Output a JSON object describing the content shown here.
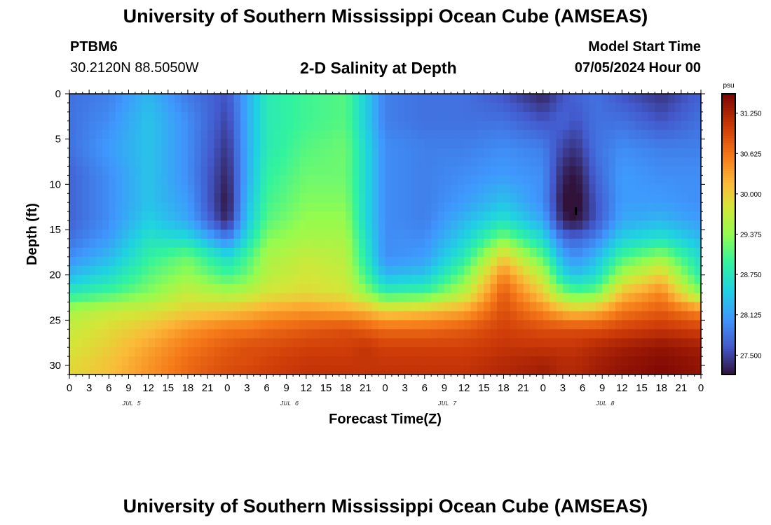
{
  "header": {
    "title": "University of Southern Mississippi Ocean Cube (AMSEAS)",
    "station_name": "PTBM6",
    "station_coords": "30.2120N  88.5050W",
    "chart_title": "2-D Salinity at Depth",
    "model_start_label": "Model Start Time",
    "model_start_value": "07/05/2024 Hour 00"
  },
  "footer": {
    "title": "University of Southern Mississippi Ocean Cube (AMSEAS)"
  },
  "chart_data": {
    "type": "heatmap",
    "title": "2-D Salinity at Depth",
    "xlabel": "Forecast Time(Z)",
    "ylabel": "Depth (ft)",
    "x_tick_labels": [
      "0",
      "3",
      "6",
      "9",
      "12",
      "15",
      "18",
      "21",
      "0",
      "3",
      "6",
      "9",
      "12",
      "15",
      "18",
      "21",
      "0",
      "3",
      "6",
      "9",
      "12",
      "15",
      "18",
      "21",
      "0",
      "3",
      "6",
      "9",
      "12",
      "15",
      "18",
      "21",
      "0"
    ],
    "day_labels": [
      {
        "label": "JUL 5",
        "hour": 9
      },
      {
        "label": "JUL 6",
        "hour": 33
      },
      {
        "label": "JUL 7",
        "hour": 57
      },
      {
        "label": "JUL 8",
        "hour": 81
      }
    ],
    "xlim": [
      0,
      96
    ],
    "ylim": [
      0,
      31
    ],
    "y_ticks": [
      0,
      5,
      10,
      15,
      20,
      25,
      30
    ],
    "y_inverted": true,
    "colorbar": {
      "unit": "psu",
      "ticks": [
        "31.250",
        "30.625",
        "30.000",
        "29.375",
        "28.750",
        "28.125",
        "27.500"
      ],
      "tick_values": [
        31.25,
        30.625,
        30.0,
        29.375,
        28.75,
        28.125,
        27.5
      ],
      "range": [
        27.2,
        31.55
      ],
      "colormap": "turbo"
    },
    "marker": {
      "hour": 77,
      "depth": 13
    },
    "hours": [
      0,
      6,
      12,
      18,
      24,
      27,
      30,
      36,
      42,
      45,
      48,
      54,
      60,
      66,
      72,
      75,
      77,
      80,
      84,
      90,
      96
    ],
    "depths": [
      0,
      3,
      6,
      9,
      12,
      14,
      16,
      18,
      20,
      22,
      24,
      26,
      28,
      30,
      31
    ],
    "salinity": [
      [
        27.8,
        27.9,
        28.3,
        27.85,
        27.6,
        28.2,
        28.8,
        29.0,
        29.1,
        28.5,
        27.9,
        27.8,
        27.8,
        27.6,
        27.3,
        27.6,
        27.7,
        27.8,
        27.6,
        27.4,
        27.7
      ],
      [
        27.8,
        28.0,
        28.4,
        28.0,
        27.5,
        28.2,
        28.8,
        29.0,
        29.1,
        28.5,
        27.9,
        27.8,
        27.8,
        27.8,
        27.6,
        27.7,
        27.6,
        27.8,
        27.8,
        27.6,
        27.8
      ],
      [
        27.8,
        28.1,
        28.4,
        28.0,
        27.4,
        28.2,
        28.8,
        29.1,
        29.2,
        28.6,
        28.0,
        27.9,
        27.9,
        28.0,
        27.9,
        27.5,
        27.4,
        27.8,
        28.0,
        27.9,
        27.9
      ],
      [
        27.7,
        28.0,
        28.4,
        28.0,
        27.3,
        28.2,
        28.9,
        29.2,
        29.2,
        28.6,
        28.0,
        27.9,
        28.0,
        28.1,
        28.0,
        27.3,
        27.2,
        27.7,
        28.1,
        28.0,
        28.0
      ],
      [
        27.7,
        28.0,
        28.4,
        28.1,
        27.2,
        28.3,
        29.0,
        29.3,
        29.3,
        28.6,
        28.0,
        27.9,
        28.1,
        28.4,
        28.0,
        27.2,
        27.1,
        27.6,
        28.1,
        28.1,
        28.0
      ],
      [
        27.7,
        28.0,
        28.5,
        28.2,
        27.3,
        28.4,
        29.1,
        29.4,
        29.4,
        28.6,
        28.0,
        27.9,
        28.3,
        28.7,
        28.2,
        27.3,
        27.2,
        27.6,
        28.2,
        28.3,
        28.1
      ],
      [
        27.8,
        28.1,
        28.7,
        28.6,
        27.9,
        28.6,
        29.3,
        29.5,
        29.5,
        28.7,
        28.0,
        28.0,
        28.5,
        29.3,
        28.6,
        27.8,
        27.7,
        27.9,
        28.5,
        28.7,
        28.3
      ],
      [
        28.0,
        28.3,
        28.9,
        29.2,
        28.6,
        29.0,
        29.5,
        29.7,
        29.6,
        28.8,
        28.0,
        28.1,
        28.8,
        30.0,
        29.1,
        28.2,
        28.0,
        28.3,
        29.0,
        29.4,
        28.6
      ],
      [
        28.3,
        28.6,
        29.1,
        29.4,
        29.0,
        29.2,
        29.6,
        29.8,
        29.7,
        29.0,
        28.3,
        28.4,
        29.2,
        30.5,
        29.6,
        28.6,
        28.4,
        28.6,
        29.5,
        30.0,
        28.8
      ],
      [
        28.8,
        29.0,
        29.3,
        29.7,
        29.5,
        29.6,
        29.8,
        29.9,
        29.8,
        29.4,
        28.9,
        29.0,
        29.6,
        30.8,
        30.0,
        29.3,
        29.1,
        29.2,
        30.1,
        30.5,
        29.3
      ],
      [
        29.5,
        29.7,
        29.8,
        30.0,
        30.1,
        30.2,
        30.3,
        30.4,
        30.3,
        30.2,
        30.0,
        30.1,
        30.3,
        30.9,
        30.5,
        30.2,
        30.1,
        30.2,
        30.6,
        30.8,
        30.5
      ],
      [
        29.7,
        29.9,
        30.1,
        30.4,
        30.6,
        30.6,
        30.7,
        30.8,
        30.9,
        30.8,
        30.7,
        30.7,
        30.8,
        31.0,
        30.9,
        30.9,
        30.9,
        30.9,
        31.0,
        31.1,
        31.0
      ],
      [
        29.8,
        30.0,
        30.3,
        30.6,
        30.8,
        30.9,
        30.9,
        31.0,
        31.0,
        31.1,
        31.0,
        31.0,
        31.0,
        31.1,
        31.1,
        31.1,
        31.1,
        31.2,
        31.3,
        31.4,
        31.3
      ],
      [
        29.9,
        30.1,
        30.4,
        30.7,
        30.9,
        30.9,
        31.0,
        31.1,
        31.1,
        31.1,
        31.1,
        31.1,
        31.1,
        31.2,
        31.3,
        31.2,
        31.2,
        31.3,
        31.4,
        31.5,
        31.4
      ],
      [
        29.9,
        30.1,
        30.4,
        30.7,
        30.9,
        31.0,
        31.0,
        31.1,
        31.1,
        31.1,
        31.1,
        31.1,
        31.1,
        31.2,
        31.3,
        31.2,
        31.2,
        31.3,
        31.4,
        31.5,
        31.4
      ]
    ]
  }
}
